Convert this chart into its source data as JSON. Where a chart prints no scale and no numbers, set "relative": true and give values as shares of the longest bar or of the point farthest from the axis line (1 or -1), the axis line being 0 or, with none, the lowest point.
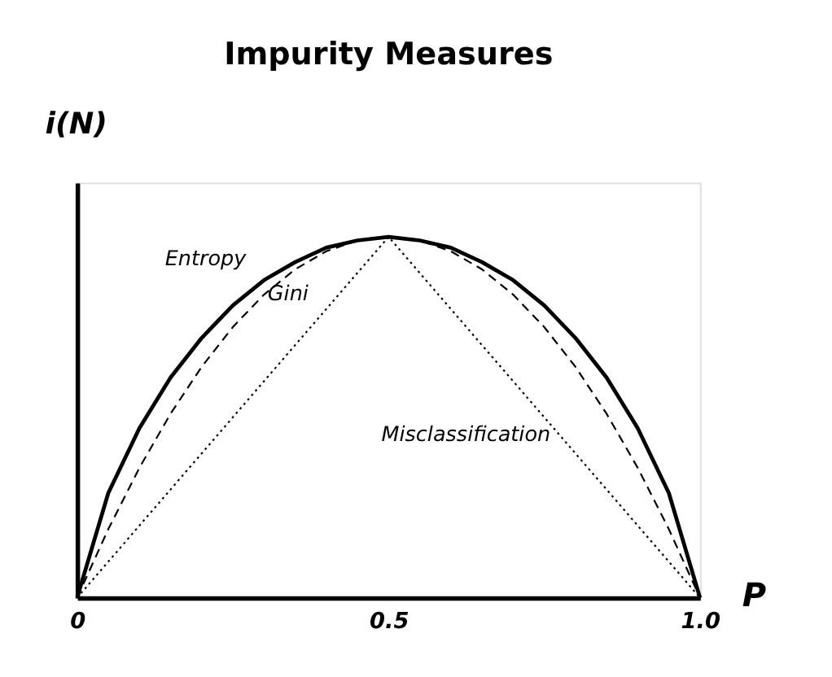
{
  "chart_data": {
    "type": "line",
    "title": "Impurity Measures",
    "xlabel": "P",
    "ylabel": "i(N)",
    "relative": true,
    "xlim": [
      0,
      1
    ],
    "xticks": [
      0,
      0.5,
      {
        "value": 1,
        "label": "1.0"
      }
    ],
    "grid": false,
    "series": [
      {
        "name": "Entropy",
        "color": "#000000",
        "line_style": "solid",
        "x": [
          0,
          0.05,
          0.1,
          0.15,
          0.2,
          0.25,
          0.3,
          0.35,
          0.4,
          0.45,
          0.5,
          0.55,
          0.6,
          0.65,
          0.7,
          0.75,
          0.8,
          0.85,
          0.9,
          0.95,
          1
        ],
        "values": [
          0,
          0.29,
          0.47,
          0.61,
          0.72,
          0.81,
          0.88,
          0.93,
          0.97,
          0.99,
          1,
          0.99,
          0.97,
          0.93,
          0.88,
          0.81,
          0.72,
          0.61,
          0.47,
          0.29,
          0
        ]
      },
      {
        "name": "Gini",
        "color": "#000000",
        "line_style": "dashed",
        "x": [
          0,
          0.05,
          0.1,
          0.15,
          0.2,
          0.25,
          0.3,
          0.35,
          0.4,
          0.45,
          0.5,
          0.55,
          0.6,
          0.65,
          0.7,
          0.75,
          0.8,
          0.85,
          0.9,
          0.95,
          1
        ],
        "values": [
          0,
          0.19,
          0.36,
          0.51,
          0.64,
          0.75,
          0.84,
          0.91,
          0.96,
          0.99,
          1,
          0.99,
          0.96,
          0.91,
          0.84,
          0.75,
          0.64,
          0.51,
          0.36,
          0.19,
          0
        ]
      },
      {
        "name": "Misclassification",
        "color": "#000000",
        "line_style": "dotted",
        "x": [
          0,
          0.5,
          1
        ],
        "values": [
          0,
          1,
          0
        ]
      }
    ]
  }
}
